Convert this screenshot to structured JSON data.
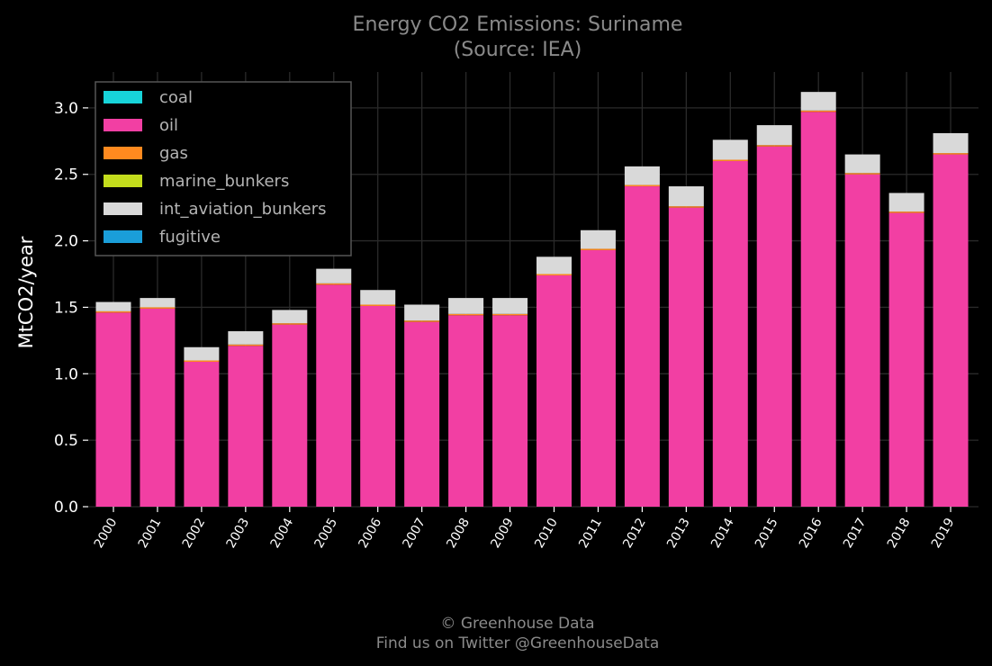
{
  "chart_data": {
    "type": "bar",
    "stacked": true,
    "title": "Energy CO2 Emissions: Suriname",
    "subtitle": "(Source: IEA)",
    "xlabel": "",
    "ylabel": "MtCO2/year",
    "ylim": [
      0,
      3.27
    ],
    "yticks": [
      "0.0",
      "0.5",
      "1.0",
      "1.5",
      "2.0",
      "2.5",
      "3.0"
    ],
    "grid": true,
    "legend_position": "top-left",
    "categories": [
      "2000",
      "2001",
      "2002",
      "2003",
      "2004",
      "2005",
      "2006",
      "2007",
      "2008",
      "2009",
      "2010",
      "2011",
      "2012",
      "2013",
      "2014",
      "2015",
      "2016",
      "2017",
      "2018",
      "2019"
    ],
    "series": [
      {
        "name": "coal",
        "color": "#17d4d9",
        "values": [
          0,
          0,
          0,
          0,
          0,
          0,
          0,
          0,
          0,
          0,
          0,
          0,
          0,
          0,
          0,
          0,
          0,
          0,
          0,
          0
        ]
      },
      {
        "name": "oil",
        "color": "#f23fa3",
        "values": [
          1.46,
          1.49,
          1.09,
          1.21,
          1.37,
          1.67,
          1.51,
          1.39,
          1.44,
          1.44,
          1.74,
          1.93,
          2.41,
          2.25,
          2.6,
          2.71,
          2.97,
          2.5,
          2.21,
          2.65
        ]
      },
      {
        "name": "gas",
        "color": "#ff8a1f",
        "values": [
          0.01,
          0.01,
          0.01,
          0.01,
          0.01,
          0.01,
          0.01,
          0.01,
          0.01,
          0.01,
          0.01,
          0.01,
          0.01,
          0.01,
          0.01,
          0.01,
          0.01,
          0.01,
          0.01,
          0.01
        ]
      },
      {
        "name": "marine_bunkers",
        "color": "#c3dc1c",
        "values": [
          0,
          0,
          0,
          0,
          0,
          0,
          0,
          0,
          0,
          0,
          0,
          0,
          0,
          0,
          0,
          0,
          0,
          0,
          0,
          0
        ]
      },
      {
        "name": "int_aviation_bunkers",
        "color": "#d9d9d9",
        "values": [
          0.07,
          0.07,
          0.1,
          0.1,
          0.1,
          0.11,
          0.11,
          0.12,
          0.12,
          0.12,
          0.13,
          0.14,
          0.14,
          0.15,
          0.15,
          0.15,
          0.14,
          0.14,
          0.14,
          0.15
        ]
      },
      {
        "name": "fugitive",
        "color": "#1a9ed9",
        "values": [
          0,
          0,
          0,
          0,
          0,
          0,
          0,
          0,
          0,
          0,
          0,
          0,
          0,
          0,
          0,
          0,
          0,
          0,
          0,
          0
        ]
      }
    ]
  },
  "footer": {
    "line1": "© Greenhouse Data",
    "line2": "Find us on Twitter @GreenhouseData"
  },
  "colors": {
    "background": "#000000",
    "grid": "#2a2a2a",
    "axis_text": "#ffffff",
    "title_text": "#8a8a8a"
  }
}
